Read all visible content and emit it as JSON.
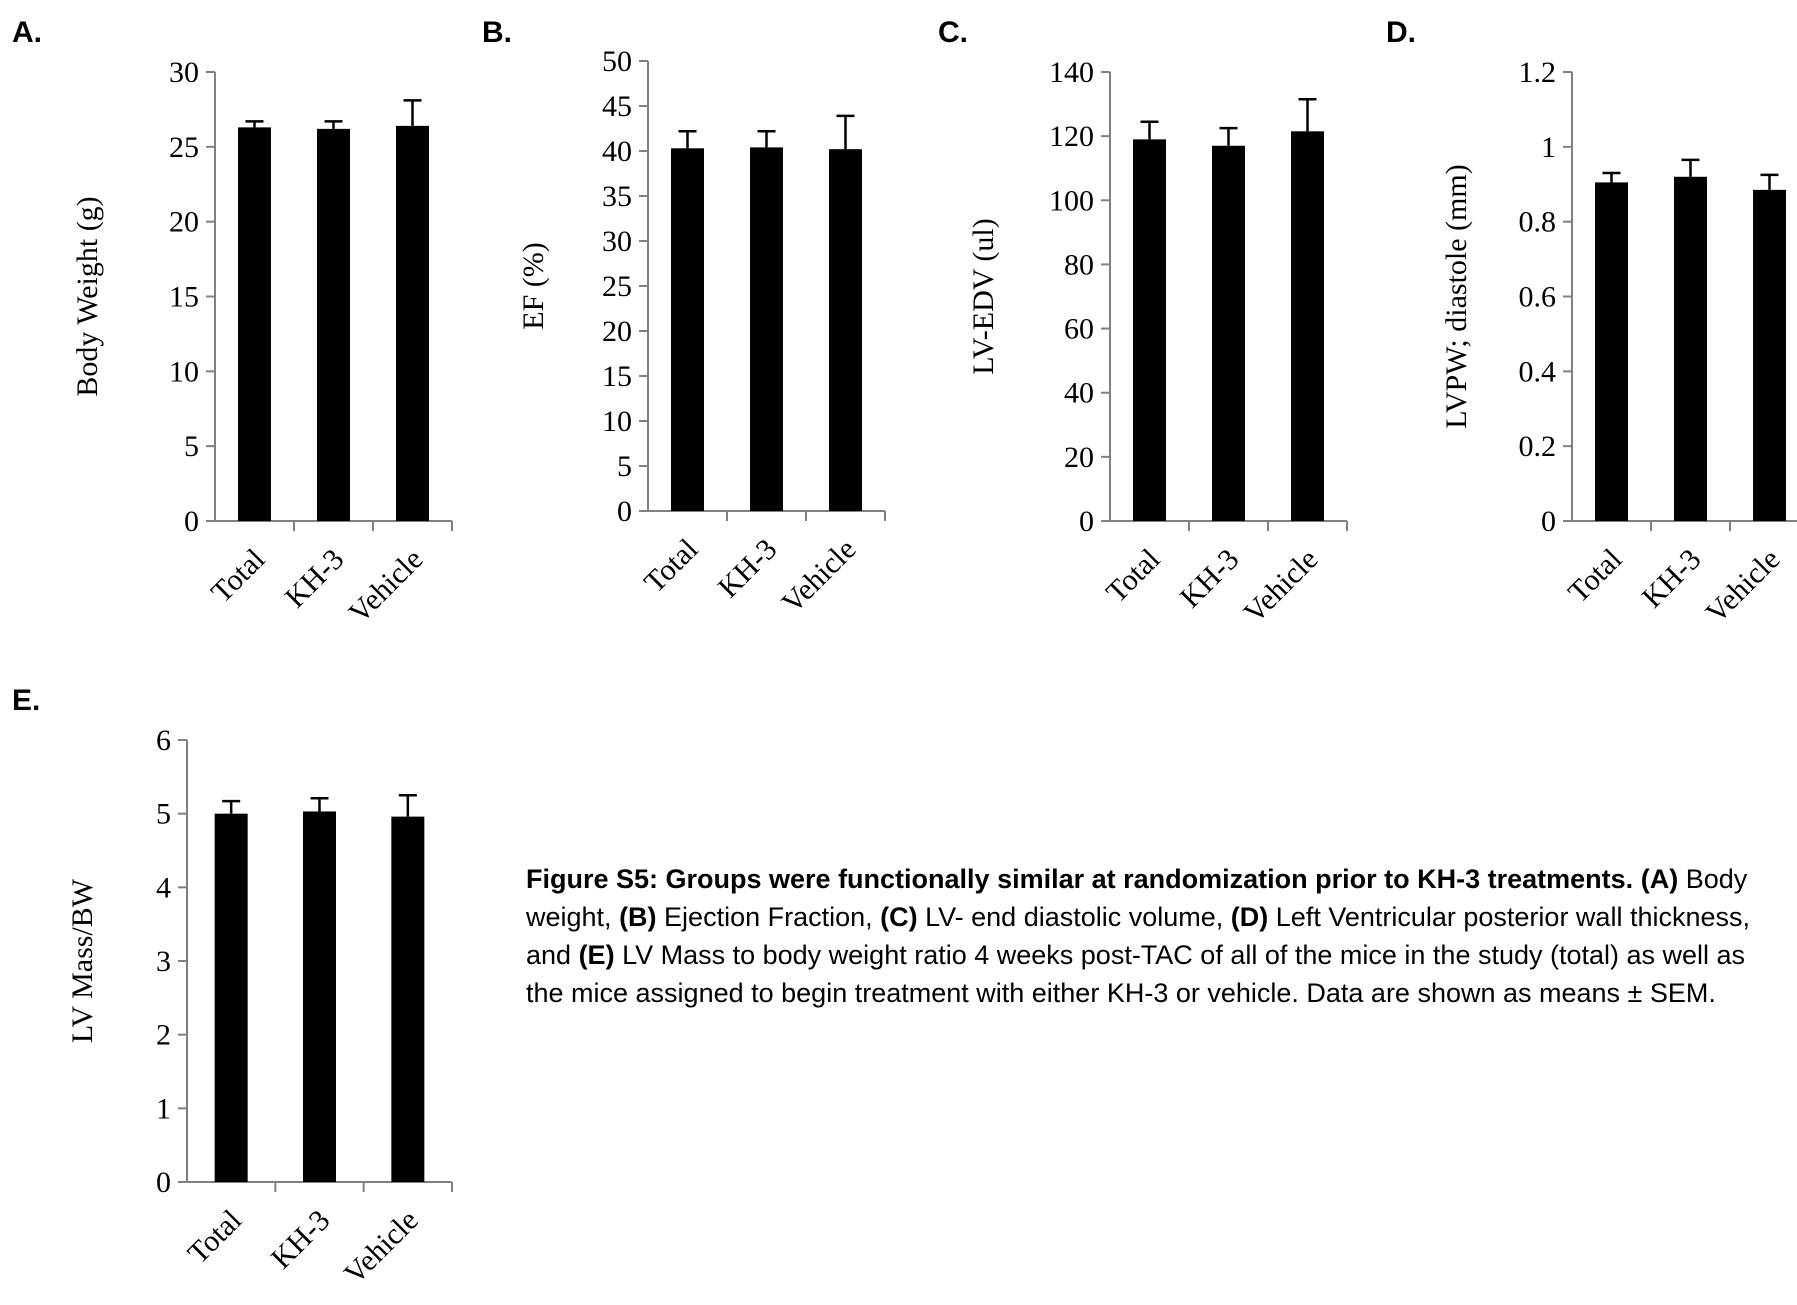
{
  "caption": {
    "heading": "Figure S5: Groups were functionally similar at randomization prior to KH-3 treatments.",
    "parts": [
      {
        "bold": "(A)",
        "text": " Body weight, "
      },
      {
        "bold": "(B)",
        "text": " Ejection Fraction, "
      },
      {
        "bold": "(C)",
        "text": " LV- end diastolic volume, "
      },
      {
        "bold": "(D)",
        "text": " Left Ventricular posterior wall thickness, and "
      },
      {
        "bold": "(E)",
        "text": " LV Mass to body weight ratio 4 weeks post-TAC of all of the mice in the study (total) as well as the mice assigned to begin treatment with either KH-3 or vehicle. Data are shown as means ± SEM."
      }
    ]
  },
  "colors": {
    "bar": "#000000",
    "axis": "#808080"
  },
  "chart_data": [
    {
      "panel": "A.",
      "type": "bar",
      "categories": [
        "Total",
        "KH-3",
        "Vehicle"
      ],
      "values": [
        26.3,
        26.2,
        26.4
      ],
      "errors": [
        0.4,
        0.5,
        1.7
      ],
      "ylabel": "Body Weight (g)",
      "ylim": [
        0,
        30
      ],
      "yticks": [
        "0",
        "5",
        "10",
        "15",
        "20",
        "25",
        "30"
      ]
    },
    {
      "panel": "B.",
      "type": "bar",
      "categories": [
        "Total",
        "KH-3",
        "Vehicle"
      ],
      "values": [
        40.3,
        40.4,
        40.2
      ],
      "errors": [
        1.9,
        1.8,
        3.7
      ],
      "ylabel": "EF (%)",
      "ylim": [
        0,
        50
      ],
      "yticks": [
        "0",
        "5",
        "10",
        "15",
        "20",
        "25",
        "30",
        "35",
        "40",
        "45",
        "50"
      ]
    },
    {
      "panel": "C.",
      "type": "bar",
      "categories": [
        "Total",
        "KH-3",
        "Vehicle"
      ],
      "values": [
        119,
        117,
        121.5
      ],
      "errors": [
        5.5,
        5.5,
        10
      ],
      "ylabel": "LV-EDV (ul)",
      "ylim": [
        0,
        140
      ],
      "yticks": [
        "0",
        "20",
        "40",
        "60",
        "80",
        "100",
        "120",
        "140"
      ]
    },
    {
      "panel": "D.",
      "type": "bar",
      "categories": [
        "Total",
        "KH-3",
        "Vehicle"
      ],
      "values": [
        0.905,
        0.92,
        0.885
      ],
      "errors": [
        0.025,
        0.045,
        0.04
      ],
      "ylabel": "LVPW; diastole (mm)",
      "ylim": [
        0,
        1.2
      ],
      "yticks": [
        "0",
        "0.2",
        "0.4",
        "0.6",
        "0.8",
        "1",
        "1.2"
      ]
    },
    {
      "panel": "E.",
      "type": "bar",
      "categories": [
        "Total",
        "KH-3",
        "Vehicle"
      ],
      "values": [
        5.0,
        5.03,
        4.96
      ],
      "errors": [
        0.17,
        0.18,
        0.29
      ],
      "ylabel": "LV Mass/BW",
      "ylim": [
        0,
        6
      ],
      "yticks": [
        "0",
        "1",
        "2",
        "3",
        "4",
        "5",
        "6"
      ]
    }
  ]
}
